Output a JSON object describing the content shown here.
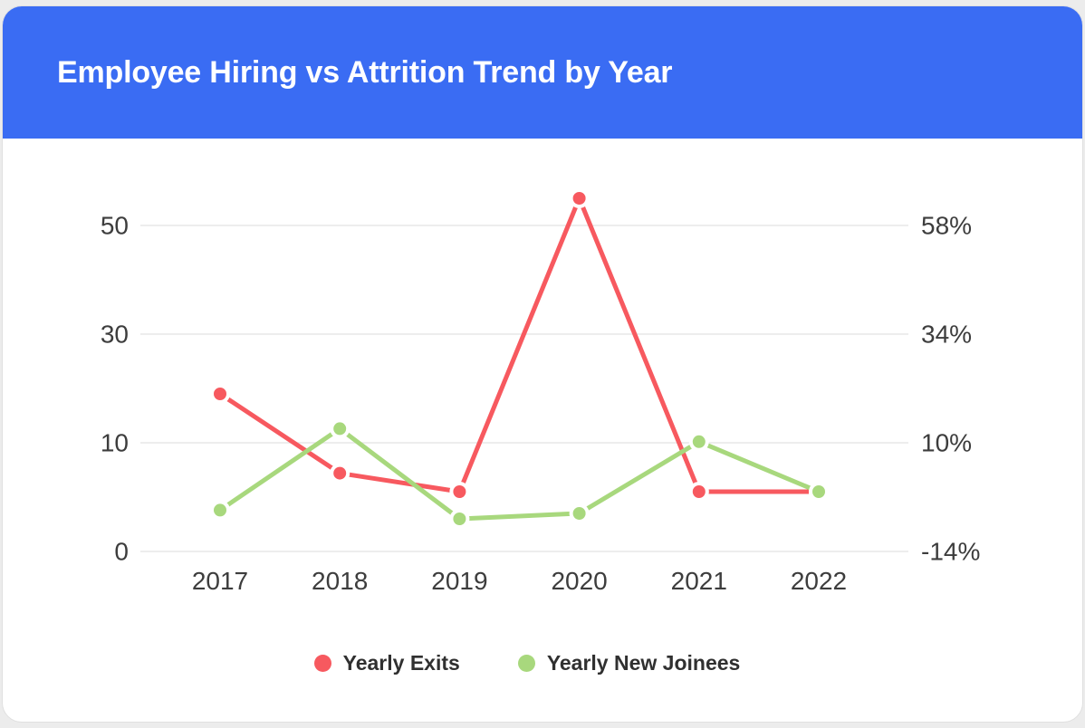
{
  "header": {
    "title": "Employee Hiring vs Attrition Trend by Year"
  },
  "colors": {
    "header_bg": "#3a6cf3",
    "title_text": "#ffffff",
    "exits": "#f7595f",
    "joinees": "#a8d87d",
    "grid": "#e7e7e7",
    "axis_text": "#3d3d3d",
    "legend_text": "#303030",
    "card_bg": "#ffffff",
    "page_bg": "#ececec"
  },
  "chart_data": {
    "type": "line",
    "title": "Employee Hiring vs Attrition Trend by Year",
    "categories": [
      "2017",
      "2018",
      "2019",
      "2020",
      "2021",
      "2022"
    ],
    "series": [
      {
        "name": "Yearly Exits",
        "color_key": "exits",
        "values": [
          19,
          7.2,
          5.5,
          55,
          5.5,
          5.5
        ]
      },
      {
        "name": "Yearly New Joinees",
        "color_key": "joinees",
        "values": [
          3.8,
          12.6,
          3,
          3.5,
          10.2,
          5.5
        ]
      }
    ],
    "left_axis": {
      "ticks": [
        0,
        10,
        30,
        50
      ]
    },
    "right_axis": {
      "ticks": [
        "-14%",
        "10%",
        "34%",
        "58%"
      ]
    },
    "grid": true,
    "legend_position": "bottom",
    "markers": true
  }
}
